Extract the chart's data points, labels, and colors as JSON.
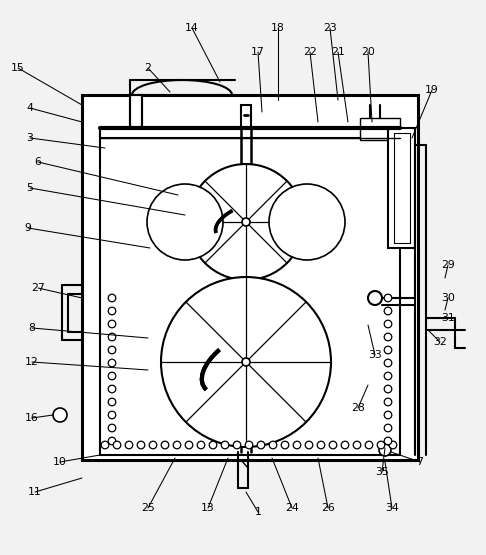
{
  "bg_color": "#f2f2f2",
  "line_color": "#000000",
  "label_color": "#000000",
  "figsize": [
    4.86,
    5.55
  ],
  "dpi": 100,
  "labels": [
    [
      "15",
      18,
      68
    ],
    [
      "14",
      192,
      28
    ],
    [
      "18",
      278,
      28
    ],
    [
      "23",
      330,
      28
    ],
    [
      "4",
      30,
      108
    ],
    [
      "2",
      148,
      68
    ],
    [
      "17",
      258,
      52
    ],
    [
      "22",
      310,
      52
    ],
    [
      "21",
      338,
      52
    ],
    [
      "20",
      368,
      52
    ],
    [
      "19",
      432,
      90
    ],
    [
      "3",
      30,
      138
    ],
    [
      "6",
      38,
      162
    ],
    [
      "5",
      30,
      188
    ],
    [
      "9",
      28,
      228
    ],
    [
      "27",
      38,
      288
    ],
    [
      "8",
      32,
      328
    ],
    [
      "12",
      32,
      365
    ],
    [
      "16",
      32,
      418
    ],
    [
      "10",
      60,
      465
    ],
    [
      "11",
      35,
      492
    ],
    [
      "25",
      148,
      508
    ],
    [
      "13",
      208,
      508
    ],
    [
      "1",
      258,
      512
    ],
    [
      "24",
      292,
      508
    ],
    [
      "26",
      328,
      508
    ],
    [
      "34",
      392,
      508
    ],
    [
      "7",
      420,
      462
    ],
    [
      "35",
      382,
      472
    ],
    [
      "28",
      358,
      408
    ],
    [
      "33",
      375,
      355
    ],
    [
      "32",
      440,
      342
    ],
    [
      "31",
      448,
      318
    ],
    [
      "30",
      448,
      298
    ],
    [
      "29",
      448,
      265
    ]
  ]
}
